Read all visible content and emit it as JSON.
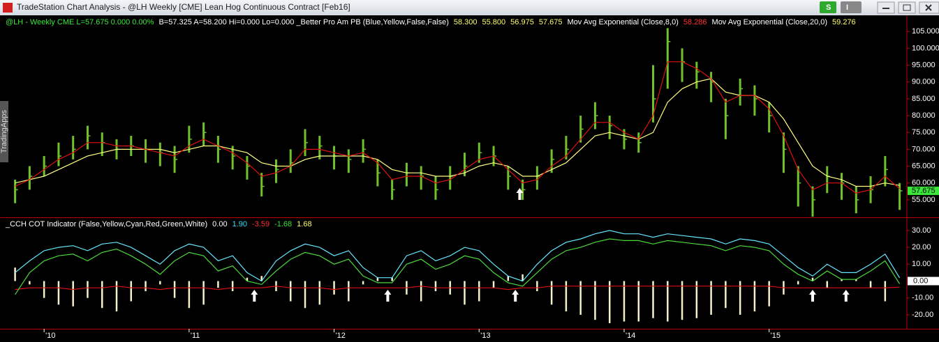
{
  "window": {
    "title": "TradeStation Chart Analysis - @LH Weekly [CME] Lean Hog Continuous Contract [Feb16]",
    "buttons": [
      "S",
      "I"
    ],
    "side_tab": "TradingApps"
  },
  "chart_data": [
    {
      "type": "ohlc",
      "header": [
        {
          "text": "@LH - Weekly  CME  L=57.675  0.000  0.00%",
          "color": "#39e639"
        },
        {
          "text": "B=57.325  A=58.200  Hi=0.000  Lo=0.000  _Better Pro Am PB (Blue,Yellow,False,False)",
          "color": "#ffffff"
        },
        {
          "text": "58.300",
          "color": "#ffff66"
        },
        {
          "text": "55.800",
          "color": "#ffff66"
        },
        {
          "text": "56.975",
          "color": "#ffff66"
        },
        {
          "text": "57.675",
          "color": "#ffff66"
        },
        {
          "text": "Mov Avg Exponential (Close,8,0)",
          "color": "#ffffff"
        },
        {
          "text": "58.286",
          "color": "#ff3030"
        },
        {
          "text": "Mov Avg Exponential (Close,20,0)",
          "color": "#ffffff"
        },
        {
          "text": "59.276",
          "color": "#ffff66"
        }
      ],
      "x": [
        2009.8,
        2009.9,
        2010.0,
        2010.1,
        2010.2,
        2010.3,
        2010.4,
        2010.5,
        2010.6,
        2010.7,
        2010.8,
        2010.9,
        2011.0,
        2011.1,
        2011.2,
        2011.3,
        2011.4,
        2011.5,
        2011.6,
        2011.7,
        2011.8,
        2011.9,
        2012.0,
        2012.1,
        2012.2,
        2012.3,
        2012.4,
        2012.5,
        2012.6,
        2012.7,
        2012.8,
        2012.9,
        2013.0,
        2013.1,
        2013.2,
        2013.3,
        2013.4,
        2013.5,
        2013.6,
        2013.7,
        2013.8,
        2013.9,
        2014.0,
        2014.1,
        2014.2,
        2014.3,
        2014.4,
        2014.5,
        2014.6,
        2014.7,
        2014.8,
        2014.9,
        2015.0,
        2015.1,
        2015.2,
        2015.3,
        2015.4,
        2015.5,
        2015.6,
        2015.7,
        2015.8,
        2015.9
      ],
      "high": [
        61,
        65,
        68,
        72,
        74,
        77,
        75,
        73,
        74,
        73,
        72,
        71,
        77,
        78,
        74,
        71,
        68,
        63,
        67,
        70,
        76,
        74,
        71,
        70,
        73,
        67,
        61,
        66,
        65,
        62,
        65,
        69,
        72,
        71,
        65,
        61,
        65,
        70,
        74,
        80,
        84,
        80,
        76,
        75,
        95,
        106,
        100,
        96,
        93,
        85,
        91,
        89,
        84,
        75,
        65,
        59,
        65,
        63,
        59,
        62,
        68,
        60
      ],
      "low": [
        54,
        58,
        62,
        65,
        67,
        70,
        68,
        67,
        68,
        66,
        65,
        63,
        69,
        71,
        66,
        64,
        61,
        56,
        60,
        63,
        68,
        67,
        64,
        63,
        66,
        59,
        55,
        59,
        58,
        55,
        58,
        62,
        66,
        65,
        58,
        55,
        58,
        63,
        67,
        72,
        76,
        73,
        70,
        69,
        78,
        88,
        90,
        88,
        84,
        73,
        83,
        80,
        75,
        63,
        53,
        50,
        57,
        55,
        51,
        54,
        59,
        52
      ],
      "close": [
        58,
        62,
        65,
        68,
        70,
        74,
        72,
        70,
        71,
        70,
        69,
        67,
        73,
        75,
        70,
        68,
        65,
        59,
        64,
        66,
        72,
        71,
        68,
        67,
        70,
        63,
        58,
        63,
        62,
        58,
        62,
        65,
        69,
        68,
        62,
        58,
        62,
        67,
        70,
        76,
        80,
        77,
        73,
        72,
        85,
        102,
        96,
        93,
        90,
        80,
        88,
        85,
        80,
        70,
        60,
        55,
        62,
        60,
        55,
        58,
        64,
        57.675
      ],
      "ema8": [
        59,
        61,
        64,
        67,
        69,
        72,
        72,
        71,
        71,
        70,
        69,
        68,
        71,
        73,
        71,
        69,
        66,
        62,
        63,
        65,
        70,
        70,
        69,
        68,
        69,
        66,
        61,
        62,
        62,
        60,
        61,
        64,
        67,
        68,
        64,
        60,
        61,
        65,
        68,
        73,
        78,
        78,
        75,
        73,
        80,
        96,
        96,
        94,
        91,
        84,
        86,
        86,
        82,
        74,
        64,
        58,
        60,
        60,
        57,
        58,
        62,
        58.286
      ],
      "ema20": [
        60,
        61,
        62,
        64,
        66,
        68,
        69,
        70,
        70,
        70,
        70,
        69,
        70,
        71,
        71,
        70,
        69,
        66,
        65,
        65,
        67,
        68,
        68,
        68,
        68,
        67,
        64,
        63,
        63,
        62,
        62,
        63,
        65,
        66,
        65,
        62,
        62,
        64,
        66,
        70,
        74,
        75,
        74,
        73,
        75,
        84,
        88,
        90,
        91,
        87,
        86,
        86,
        84,
        79,
        72,
        65,
        62,
        61,
        59,
        59,
        60,
        59.276
      ],
      "bar_color": "#6fc22a",
      "ema8_color": "#e01010",
      "ema20_color": "#ffff80",
      "signals": [
        2013.28
      ],
      "xlim": [
        2009.72,
        2015.95
      ],
      "xticks": [
        {
          "value": 2010,
          "label": "'10"
        },
        {
          "value": 2011,
          "label": "'11"
        },
        {
          "value": 2012,
          "label": "'12"
        },
        {
          "value": 2013,
          "label": "'13"
        },
        {
          "value": 2014,
          "label": "'14"
        },
        {
          "value": 2015,
          "label": "'15"
        }
      ],
      "ylim": [
        49.8,
        109.8
      ],
      "yticks": [
        {
          "value": 55,
          "label": "55.000"
        },
        {
          "value": 60,
          "label": "60.000"
        },
        {
          "value": 65,
          "label": "65.000"
        },
        {
          "value": 70,
          "label": "70.000"
        },
        {
          "value": 75,
          "label": "75.000"
        },
        {
          "value": 80,
          "label": "80.000"
        },
        {
          "value": 85,
          "label": "85.000"
        },
        {
          "value": 90,
          "label": "90.000"
        },
        {
          "value": 95,
          "label": "95.000"
        },
        {
          "value": 100,
          "label": "100.000"
        },
        {
          "value": 105,
          "label": "105.000"
        }
      ]
    },
    {
      "type": "indicator",
      "header": [
        {
          "text": "_CCH COT Indicator (False,Yellow,Cyan,Red,Green,White)",
          "color": "#ffffff"
        },
        {
          "text": "0.00",
          "color": "#ffffff"
        },
        {
          "text": "1.90",
          "color": "#33e0ff"
        },
        {
          "text": "-3.59",
          "color": "#ff3030"
        },
        {
          "text": "-1.68",
          "color": "#39e639"
        },
        {
          "text": "1.68",
          "color": "#ffff66"
        }
      ],
      "cyan": [
        5,
        12,
        18,
        20,
        21,
        18,
        22,
        23,
        20,
        15,
        10,
        18,
        22,
        20,
        12,
        15,
        5,
        0,
        12,
        18,
        22,
        20,
        15,
        18,
        8,
        2,
        2,
        15,
        18,
        12,
        15,
        20,
        18,
        10,
        3,
        0,
        10,
        18,
        23,
        25,
        28,
        30,
        28,
        28,
        26,
        28,
        27,
        26,
        25,
        22,
        25,
        24,
        22,
        15,
        8,
        3,
        10,
        5,
        5,
        10,
        16,
        1.9
      ],
      "green": [
        -8,
        5,
        12,
        15,
        16,
        12,
        17,
        19,
        15,
        10,
        4,
        12,
        17,
        15,
        6,
        9,
        0,
        -2,
        6,
        13,
        17,
        15,
        10,
        13,
        3,
        -1,
        -1,
        10,
        13,
        7,
        10,
        15,
        13,
        5,
        -1,
        -3,
        5,
        13,
        18,
        20,
        23,
        25,
        24,
        24,
        22,
        24,
        23,
        22,
        21,
        18,
        21,
        20,
        18,
        10,
        4,
        0,
        6,
        1,
        1,
        6,
        12,
        -1.68
      ],
      "red": [
        -5,
        -4,
        -4,
        -4,
        -5,
        -4,
        -4,
        -3,
        -4,
        -4,
        -5,
        -4,
        -4,
        -4,
        -5,
        -4,
        -4,
        -4,
        -3,
        -4,
        -4,
        -4,
        -5,
        -4,
        -4,
        -4,
        -4,
        -4,
        -3,
        -4,
        -4,
        -4,
        -4,
        -4,
        -5,
        -4,
        -4,
        -3,
        -3,
        -3,
        -3,
        -3,
        -3,
        -3,
        -3,
        -3,
        -3,
        -3,
        -3,
        -3,
        -3,
        -3,
        -3,
        -4,
        -4,
        -4,
        -4,
        -4,
        -4,
        -4,
        -4,
        -3.59
      ],
      "histogram": [
        8,
        -2,
        -10,
        -14,
        -15,
        -10,
        -16,
        -18,
        -12,
        -6,
        -2,
        -10,
        -16,
        -14,
        -4,
        -6,
        2,
        3,
        -6,
        -12,
        -16,
        -14,
        -8,
        -12,
        -2,
        2,
        2,
        -8,
        -12,
        -6,
        -8,
        -14,
        -12,
        -4,
        3,
        4,
        -6,
        -14,
        -18,
        -20,
        -23,
        -25,
        -24,
        -24,
        -22,
        -24,
        -23,
        -22,
        -20,
        -16,
        -20,
        -18,
        -15,
        -8,
        -2,
        2,
        -4,
        1,
        1,
        -4,
        -12,
        0
      ],
      "cyan_color": "#66e6ff",
      "green_color": "#4cd93a",
      "red_color": "#e01010",
      "histogram_color": "#f4f0c8",
      "signals": [
        2011.45,
        2012.37,
        2013.25,
        2015.3,
        2015.53
      ],
      "ylim": [
        -28.3,
        37.4
      ],
      "yticks": [
        {
          "value": -20,
          "label": "-20.00"
        },
        {
          "value": -10,
          "label": "-10.00"
        },
        {
          "value": 10,
          "label": "10.00"
        },
        {
          "value": 20,
          "label": "20.00"
        },
        {
          "value": 30,
          "label": "30.00"
        }
      ]
    }
  ]
}
